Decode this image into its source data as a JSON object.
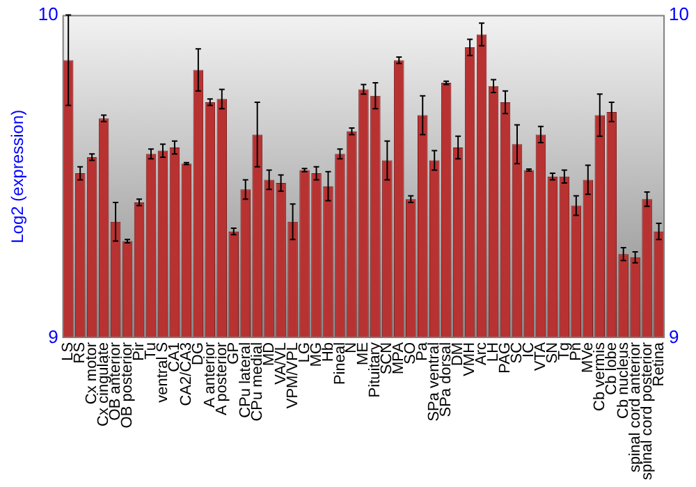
{
  "chart_data": {
    "type": "bar",
    "ylabel": "Log2 (expression)",
    "categories": [
      "LS",
      "RS",
      "Cx motor",
      "Cx cingulate",
      "OB anterior",
      "OB posterior",
      "Pir",
      "Tu",
      "ventral S",
      "CA1",
      "CA2/CA3",
      "DG",
      "A anterior",
      "A posterior",
      "GP",
      "CPu lateral",
      "CPu medial",
      "MD",
      "VA/VL",
      "VPM/VPL",
      "LG",
      "MG",
      "Hb",
      "Pineal",
      "N",
      "ME",
      "Pituitary",
      "SCN",
      "MPA",
      "SO",
      "Pa",
      "SPa ventral",
      "SPa dorsal",
      "DM",
      "VMH",
      "Arc",
      "LH",
      "PAG",
      "SC",
      "IC",
      "VTA",
      "SN",
      "Tg",
      "Pn",
      "MVe",
      "Cb vermis",
      "Cb lobe",
      "Cb nucleus",
      "spinal cord anterior",
      "spinal cord posterior",
      "Retina"
    ],
    "values": [
      9.86,
      9.51,
      9.56,
      9.68,
      9.36,
      9.3,
      9.42,
      9.57,
      9.58,
      9.59,
      9.54,
      9.83,
      9.73,
      9.74,
      9.33,
      9.46,
      9.63,
      9.49,
      9.48,
      9.36,
      9.52,
      9.51,
      9.47,
      9.57,
      9.64,
      9.77,
      9.75,
      9.55,
      9.86,
      9.43,
      9.69,
      9.55,
      9.79,
      9.59,
      9.9,
      9.94,
      9.78,
      9.73,
      9.6,
      9.52,
      9.63,
      9.5,
      9.5,
      9.41,
      9.49,
      9.69,
      9.7,
      9.26,
      9.25,
      9.43,
      9.33
    ],
    "errors": [
      0.14,
      0.02,
      0.01,
      0.01,
      0.06,
      0.005,
      0.01,
      0.015,
      0.02,
      0.02,
      0.003,
      0.065,
      0.01,
      0.03,
      0.01,
      0.03,
      0.1,
      0.03,
      0.025,
      0.055,
      0.005,
      0.02,
      0.045,
      0.015,
      0.01,
      0.015,
      0.04,
      0.06,
      0.01,
      0.01,
      0.06,
      0.03,
      0.005,
      0.035,
      0.025,
      0.035,
      0.02,
      0.035,
      0.06,
      0.003,
      0.025,
      0.01,
      0.02,
      0.03,
      0.045,
      0.065,
      0.03,
      0.02,
      0.017,
      0.022,
      0.025
    ],
    "color": "#b83232",
    "ylim": [
      9,
      10
    ],
    "yticks": [
      9,
      10
    ],
    "y2lim": [
      9,
      10
    ],
    "y2ticks": [
      9,
      10
    ],
    "grid": false,
    "legend": false
  }
}
